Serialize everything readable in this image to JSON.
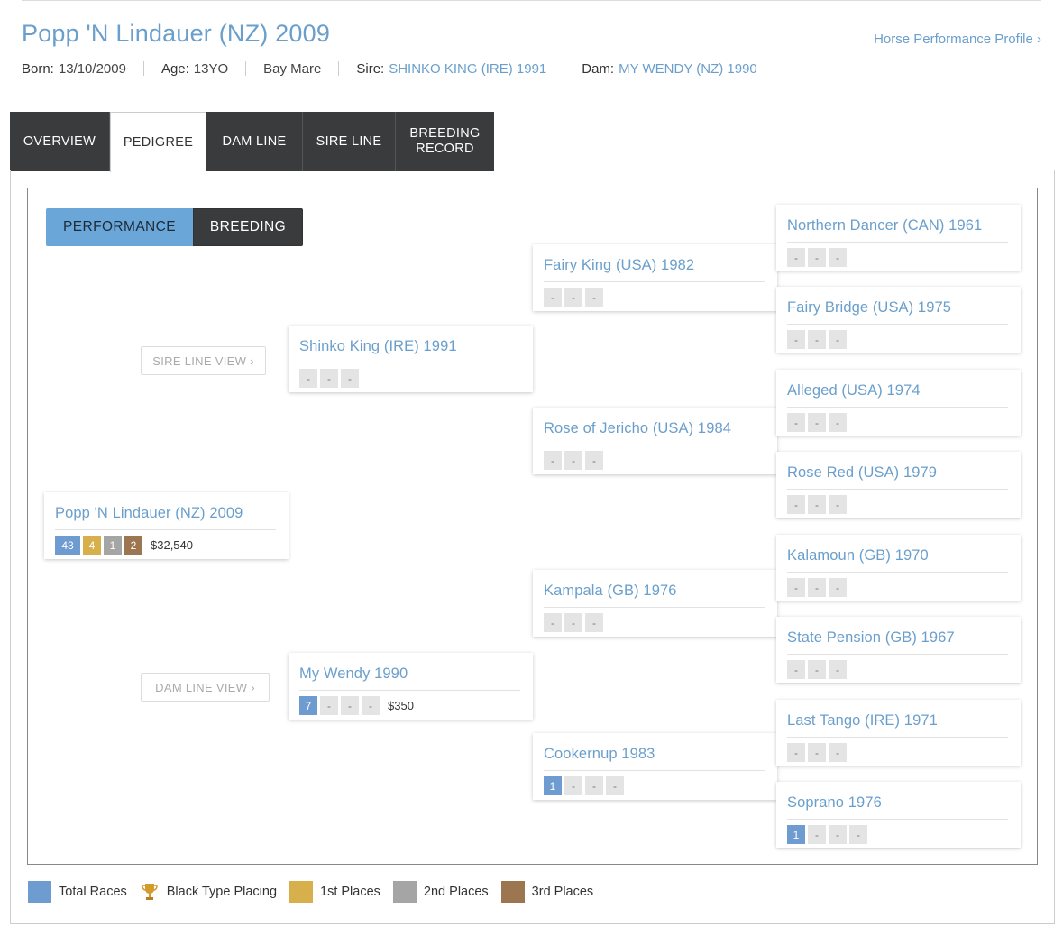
{
  "header": {
    "title": "Popp 'N Lindauer (NZ) 2009",
    "profile_link": "Horse Performance Profile ›",
    "born_label": "Born:",
    "born_value": "13/10/2009",
    "age_label": "Age:",
    "age_value": "13YO",
    "colour_sex": "Bay Mare",
    "sire_label": "Sire:",
    "sire_value": "SHINKO KING (IRE) 1991",
    "dam_label": "Dam:",
    "dam_value": "MY WENDY (NZ) 1990"
  },
  "tabs": {
    "overview": "OVERVIEW",
    "pedigree": "PEDIGREE",
    "dam_line": "DAM LINE",
    "sire_line": "SIRE LINE",
    "breeding_record_1": "BREEDING",
    "breeding_record_2": "RECORD"
  },
  "toggle": {
    "performance": "PERFORMANCE",
    "breeding": "BREEDING"
  },
  "views": {
    "sire_line_view": "SIRE LINE VIEW ›",
    "dam_line_view": "DAM LINE VIEW ›"
  },
  "pedigree": {
    "subject": {
      "name": "Popp 'N Lindauer (NZ) 2009",
      "total": "43",
      "first": "4",
      "second": "1",
      "third": "2",
      "prize": "$32,540"
    },
    "sire": {
      "name": "Shinko King (IRE) 1991",
      "c1": "-",
      "c2": "-",
      "c3": "-"
    },
    "dam": {
      "name": "My Wendy 1990",
      "total": "7",
      "c1": "-",
      "c2": "-",
      "c3": "-",
      "prize": "$350"
    },
    "ss": {
      "name": "Fairy King (USA) 1982",
      "c1": "-",
      "c2": "-",
      "c3": "-"
    },
    "sd": {
      "name": "Rose of Jericho (USA) 1984",
      "c1": "-",
      "c2": "-",
      "c3": "-"
    },
    "ds": {
      "name": "Kampala (GB) 1976",
      "c1": "-",
      "c2": "-",
      "c3": "-"
    },
    "dd": {
      "name": "Cookernup 1983",
      "total": "1",
      "c1": "-",
      "c2": "-",
      "c3": "-"
    },
    "sss": {
      "name": "Northern Dancer (CAN) 1961",
      "c1": "-",
      "c2": "-",
      "c3": "-"
    },
    "ssd": {
      "name": "Fairy Bridge (USA) 1975",
      "c1": "-",
      "c2": "-",
      "c3": "-"
    },
    "sds": {
      "name": "Alleged (USA) 1974",
      "c1": "-",
      "c2": "-",
      "c3": "-"
    },
    "sdd": {
      "name": "Rose Red (USA) 1979",
      "c1": "-",
      "c2": "-",
      "c3": "-"
    },
    "dss": {
      "name": "Kalamoun (GB) 1970",
      "c1": "-",
      "c2": "-",
      "c3": "-"
    },
    "dsd": {
      "name": "State Pension (GB) 1967",
      "c1": "-",
      "c2": "-",
      "c3": "-"
    },
    "dds": {
      "name": "Last Tango (IRE) 1971",
      "c1": "-",
      "c2": "-",
      "c3": "-"
    },
    "ddd": {
      "name": "Soprano 1976",
      "total": "1",
      "c1": "-",
      "c2": "-",
      "c3": "-"
    }
  },
  "legend": {
    "total_races": "Total Races",
    "black_type": "Black Type Placing",
    "first": "1st Places",
    "second": "2nd Places",
    "third": "3rd Places"
  },
  "colors": {
    "link_blue": "#6a9fcc",
    "total_blue": "#6e9cd0",
    "first_gold": "#d7b04c",
    "second_grey": "#a5a5a5",
    "third_brown": "#9b7650",
    "dark_tab": "#3a3b3d"
  }
}
